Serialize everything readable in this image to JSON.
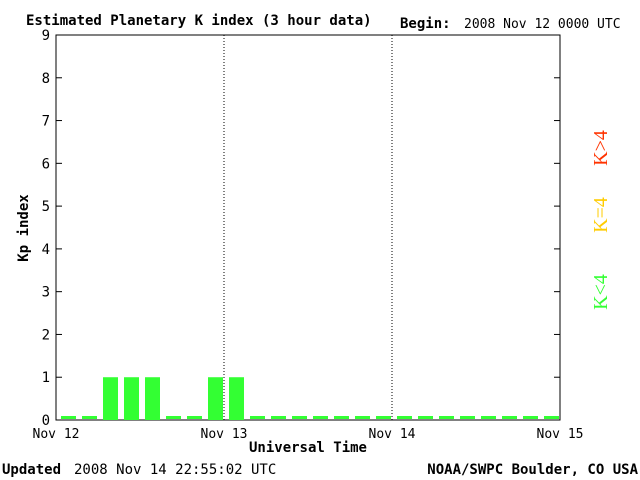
{
  "chart_data": {
    "type": "bar",
    "title": "Estimated Planetary K index (3 hour data)",
    "begin_label": "Begin:",
    "begin_value": "2008 Nov 12 0000 UTC",
    "ylabel": "Kp index",
    "xlabel": "Universal Time",
    "ylim": [
      0,
      9
    ],
    "yticks": [
      "0",
      "1",
      "2",
      "3",
      "4",
      "5",
      "6",
      "7",
      "8",
      "9"
    ],
    "x_tick_labels": [
      "Nov 12",
      "Nov 13",
      "Nov 14",
      "Nov 15"
    ],
    "day_dividers": [
      "Nov 13",
      "Nov 14"
    ],
    "bar_color": "#33ff33",
    "values": [
      0,
      0,
      1,
      1,
      1,
      0,
      0,
      1,
      1,
      0,
      0,
      0,
      0,
      0,
      0,
      0,
      0,
      0,
      0,
      0,
      0,
      0,
      0,
      0
    ],
    "legend": [
      {
        "text": "K>4",
        "color": "#ff3300"
      },
      {
        "text": "K=4",
        "color": "#ffcc00"
      },
      {
        "text": "K<4",
        "color": "#33ff33"
      }
    ],
    "grid": false
  },
  "footer": {
    "updated_label": "Updated",
    "updated_value": "2008 Nov 14 22:55:02 UTC",
    "source": "NOAA/SWPC Boulder, CO USA"
  }
}
